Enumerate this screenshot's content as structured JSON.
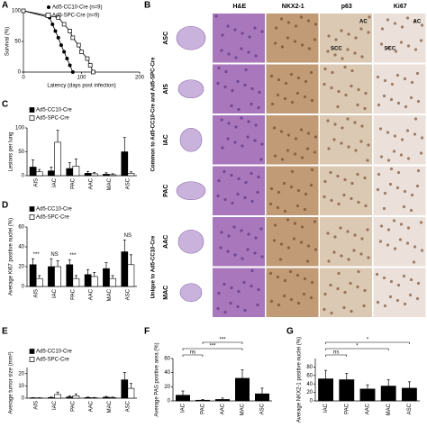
{
  "panel_labels": [
    "A",
    "B",
    "C",
    "D",
    "E",
    "F",
    "G"
  ],
  "histology": {
    "columns": [
      "H&E",
      "NKX2-1",
      "p63",
      "Ki67"
    ],
    "rows": [
      "ASC",
      "AIS",
      "IAC",
      "PAC",
      "AAC",
      "MAC"
    ],
    "groups": [
      "Common to Ad5-CC10-Cre and Ad5-SPC-Cre",
      "Unique to Ad5-CC10-Cre"
    ],
    "insets": [
      "AC",
      "SCC",
      "AC",
      "SCC"
    ]
  },
  "chart_data": [
    {
      "type": "line",
      "y_label": "Survival (%)",
      "x_label": "Latency (days post infection)",
      "xlim": [
        0,
        200
      ],
      "xticks": [
        0,
        100,
        200
      ],
      "ylim": [
        0,
        100
      ],
      "yticks": [
        0,
        50,
        100
      ],
      "series": [
        {
          "name": "Ad5-CC10-Cre (n=9)",
          "color": "#000000",
          "marker": "circle",
          "x": [
            0,
            45,
            50,
            55,
            60,
            65,
            70,
            75,
            80,
            85
          ],
          "values": [
            100,
            89,
            78,
            67,
            56,
            44,
            33,
            22,
            11,
            0
          ]
        },
        {
          "name": "Ad5-SPC-Cre (n=9)",
          "color": "#000000",
          "marker": "square",
          "x": [
            0,
            60,
            70,
            80,
            85,
            95,
            100,
            110,
            115,
            120
          ],
          "values": [
            100,
            89,
            78,
            67,
            56,
            44,
            33,
            22,
            11,
            0
          ]
        }
      ]
    },
    {
      "type": "bar",
      "y_label": "Lesions per lung",
      "categories": [
        "AIS",
        "IAC",
        "PAC",
        "AAC",
        "MAC",
        "ASC"
      ],
      "ylim": [
        0,
        100
      ],
      "yticks": [
        0,
        50,
        100
      ],
      "series": [
        {
          "name": "Ad5-CC10-Cre",
          "color": "#000000",
          "values": [
            18,
            10,
            15,
            5,
            3,
            50
          ],
          "errors": [
            15,
            8,
            12,
            4,
            3,
            30
          ]
        },
        {
          "name": "Ad5-SPC-Cre",
          "color": "#ffffff",
          "values": [
            8,
            70,
            20,
            4,
            2,
            5
          ],
          "errors": [
            5,
            25,
            15,
            3,
            2,
            3
          ]
        }
      ]
    },
    {
      "type": "bar",
      "y_label": "Average Ki67 positive nuclei (%)",
      "categories": [
        "AIS",
        "IAC",
        "PAC",
        "AAC",
        "MAC",
        "ASC"
      ],
      "ylim": [
        0,
        60
      ],
      "yticks": [
        0,
        20,
        40,
        60
      ],
      "annotations": [
        "***",
        "NS",
        "***",
        "NS"
      ],
      "series": [
        {
          "name": "Ad5-CC10-Cre",
          "color": "#000000",
          "values": [
            22,
            20,
            22,
            12,
            18,
            35
          ],
          "errors": [
            6,
            8,
            5,
            5,
            6,
            12
          ]
        },
        {
          "name": "Ad5-SPC-Cre",
          "color": "#ffffff",
          "values": [
            8,
            20,
            8,
            10,
            8,
            22
          ],
          "errors": [
            3,
            6,
            3,
            4,
            3,
            10
          ]
        }
      ]
    },
    {
      "type": "bar",
      "y_label": "Average tumor size (mm²)",
      "categories": [
        "AIS",
        "IAC",
        "PAC",
        "AAC",
        "MAC",
        "ASC"
      ],
      "ylim": [
        0,
        25
      ],
      "yticks": [
        0,
        10,
        20
      ],
      "series": [
        {
          "name": "Ad5-CC10-Cre",
          "color": "#000000",
          "values": [
            0.3,
            0.5,
            1,
            0.5,
            0.8,
            15
          ],
          "errors": [
            0.2,
            0.4,
            1,
            0.4,
            0.6,
            6
          ]
        },
        {
          "name": "Ad5-SPC-Cre",
          "color": "#ffffff",
          "values": [
            0.2,
            3,
            2,
            0.3,
            0.5,
            8
          ],
          "errors": [
            0.2,
            2,
            1.5,
            0.3,
            0.4,
            4
          ]
        }
      ]
    },
    {
      "type": "bar",
      "y_label": "Average PAS positive area (%)",
      "categories": [
        "IAC",
        "PAC",
        "AAC",
        "MAC",
        "ASC"
      ],
      "ylim": [
        0,
        60
      ],
      "yticks": [
        0,
        20,
        40,
        60
      ],
      "annotations": [
        "ns",
        "***",
        "***"
      ],
      "series": [
        {
          "name": "PAS",
          "color": "#000000",
          "values": [
            8,
            1,
            2,
            32,
            10
          ],
          "errors": [
            6,
            1,
            2,
            12,
            8
          ]
        }
      ]
    },
    {
      "type": "bar",
      "y_label": "Average NKX2-1 positive nuclei (%)",
      "categories": [
        "IAC",
        "PAC",
        "AAC",
        "MAC",
        "ASC"
      ],
      "ylim": [
        0,
        100
      ],
      "yticks": [
        0,
        20,
        40,
        60,
        80
      ],
      "annotations": [
        "ns",
        "*",
        "*"
      ],
      "series": [
        {
          "name": "NKX2-1",
          "color": "#000000",
          "values": [
            52,
            50,
            28,
            35,
            30
          ],
          "errors": [
            20,
            15,
            10,
            15,
            15
          ]
        }
      ]
    }
  ]
}
